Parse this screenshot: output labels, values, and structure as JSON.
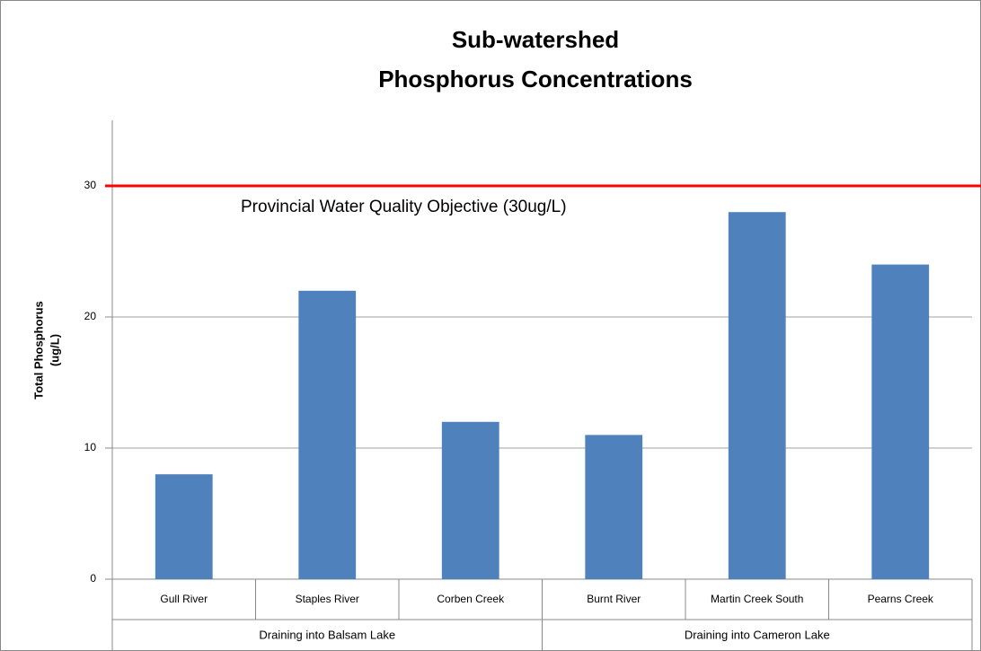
{
  "chart_data": {
    "type": "bar",
    "title": [
      "Sub-watershed",
      "Phosphorus Concentrations"
    ],
    "y_label": [
      "Total Phosphorus",
      "(ug/L)"
    ],
    "groups": [
      {
        "name": "Draining into Balsam Lake",
        "categories": [
          "Gull River",
          "Staples River",
          "Corben Creek"
        ],
        "values": [
          8,
          22,
          12
        ]
      },
      {
        "name": "Draining into Cameron Lake",
        "categories": [
          "Burnt River",
          "Martin Creek South",
          "Pearns Creek"
        ],
        "values": [
          11,
          28,
          24
        ]
      }
    ],
    "color": "#4f81bd",
    "ylim": [
      0,
      35
    ],
    "yticks": [
      0,
      10,
      20,
      30
    ],
    "grid": true,
    "reference_lines": [
      {
        "value": 30,
        "label": "Provincial Water Quality Objective (30ug/L)",
        "color": "#ff0000"
      }
    ]
  }
}
